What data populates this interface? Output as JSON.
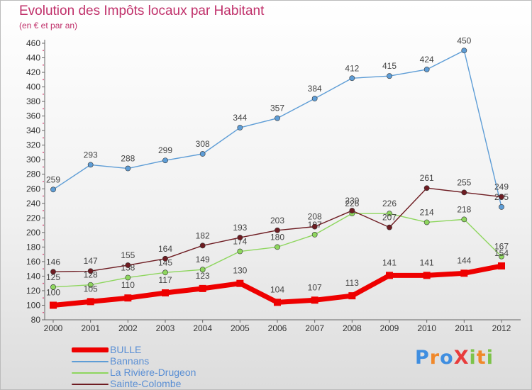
{
  "title": "Evolution des Impôts locaux par Habitant",
  "subtitle": "(en € et par an)",
  "brand": {
    "text": "ProXiti",
    "letters": [
      {
        "ch": "P",
        "color": "#3f8ee0"
      },
      {
        "ch": "r",
        "color": "#f0882a"
      },
      {
        "ch": "o",
        "color": "#3f8ee0"
      },
      {
        "ch": "X",
        "color": "#e83c3c"
      },
      {
        "ch": "i",
        "color": "#7dc34a"
      },
      {
        "ch": "t",
        "color": "#f0882a"
      },
      {
        "ch": "i",
        "color": "#7dc34a"
      }
    ]
  },
  "chart_data": {
    "type": "line",
    "title": "Evolution des Impôts locaux par Habitant",
    "subtitle": "(en € et par an)",
    "x": [
      "2000",
      "2001",
      "2002",
      "2003",
      "2004",
      "2005",
      "2006",
      "2007",
      "2008",
      "2009",
      "2010",
      "2011",
      "2012"
    ],
    "ylim": [
      80,
      460
    ],
    "ytick_step": 20,
    "grid": false,
    "legend_position": "bottom-left",
    "series": [
      {
        "name": "BULLE",
        "color": "#ee0000",
        "values": [
          100,
          105,
          110,
          117,
          123,
          130,
          104,
          107,
          113,
          141,
          141,
          144,
          154
        ],
        "labels": [
          "100",
          "105",
          "110",
          "117",
          "123",
          "130",
          "104",
          "107",
          "113",
          "141",
          "141",
          "144",
          "154"
        ]
      },
      {
        "name": "Bannans",
        "color": "#5e9dd6",
        "values": [
          259,
          293,
          288,
          299,
          308,
          344,
          357,
          384,
          412,
          415,
          424,
          450,
          235
        ],
        "labels": [
          "259",
          "293",
          "288",
          "299",
          "308",
          "344",
          "357",
          "384",
          "412",
          "415",
          "424",
          "450",
          "235"
        ]
      },
      {
        "name": "La Rivière-Drugeon",
        "color": "#8ed65e",
        "values": [
          125,
          128,
          138,
          145,
          149,
          174,
          180,
          197,
          226,
          226,
          214,
          218,
          167
        ],
        "labels": [
          "125",
          "128",
          "138",
          "145",
          "149",
          "174",
          "180",
          "197",
          "226",
          "226",
          "214",
          "218",
          "167"
        ]
      },
      {
        "name": "Sainte-Colombe",
        "color": "#6e1c22",
        "values": [
          146,
          147,
          155,
          164,
          182,
          193,
          203,
          208,
          230,
          207,
          261,
          255,
          249
        ],
        "labels": [
          "146",
          "147",
          "155",
          "164",
          "182",
          "193",
          "203",
          "208",
          "230",
          "207",
          "261",
          "255",
          "249"
        ]
      }
    ]
  }
}
